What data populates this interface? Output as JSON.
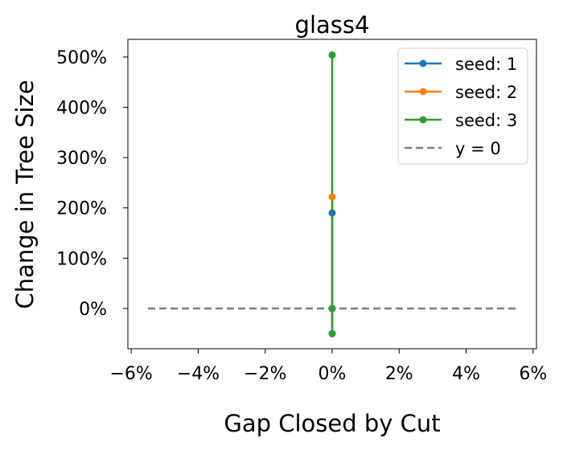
{
  "chart_data": {
    "type": "line",
    "title": "glass4",
    "xlabel": "Gap Closed by Cut",
    "ylabel": "Change in Tree Size",
    "xlim": [
      -6.1,
      6.1
    ],
    "ylim": [
      -80,
      535
    ],
    "x_ticks": [
      -6,
      -4,
      -2,
      0,
      2,
      4,
      6
    ],
    "x_tick_labels": [
      "−6%",
      "−4%",
      "−2%",
      "0%",
      "2%",
      "4%",
      "6%"
    ],
    "y_ticks": [
      0,
      100,
      200,
      300,
      400,
      500
    ],
    "y_tick_labels": [
      "0%",
      "100%",
      "200%",
      "300%",
      "400%",
      "500%"
    ],
    "grid": false,
    "legend_position": "upper right",
    "series": [
      {
        "name": "seed: 1",
        "color": "#1f77b4",
        "x": [
          0,
          0,
          0
        ],
        "y": [
          -50,
          0,
          190
        ]
      },
      {
        "name": "seed: 2",
        "color": "#ff7f0e",
        "x": [
          0,
          0,
          0
        ],
        "y": [
          -50,
          0,
          222
        ]
      },
      {
        "name": "seed: 3",
        "color": "#2ca02c",
        "x": [
          0,
          0,
          0
        ],
        "y": [
          -50,
          0,
          504
        ]
      }
    ],
    "reference_line": {
      "name": "y = 0",
      "color": "#808080",
      "style": "dashed",
      "y": 0,
      "x_range": [
        -5.5,
        5.5
      ]
    }
  }
}
